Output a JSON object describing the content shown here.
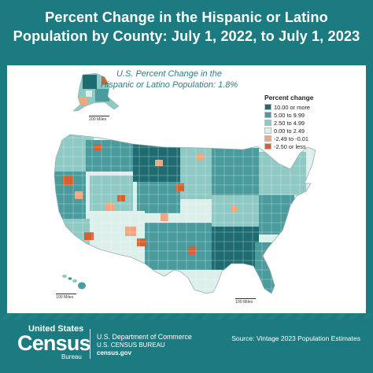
{
  "header": {
    "title_line1": "Percent Change in the Hispanic or Latino",
    "title_line2": "Population by County: July 1, 2022, to July 1, 2023"
  },
  "subtitle": {
    "line1": "U.S. Percent Change in the",
    "line2": "Hispanic or Latino Population: 1.8%"
  },
  "legend": {
    "title": "Percent change",
    "items": [
      {
        "label": "10.00 or more",
        "color": "#1e6b72"
      },
      {
        "label": "5.00 to 9.99",
        "color": "#4a9b9d"
      },
      {
        "label": "2.50 to 4.99",
        "color": "#8ec9c3"
      },
      {
        "label": "0.00 to 2.49",
        "color": "#dcefeb"
      },
      {
        "label": "-2.49 to -0.01",
        "color": "#f0a77d"
      },
      {
        "label": "-2.50 or less",
        "color": "#d8602f"
      }
    ]
  },
  "scales": {
    "alaska": "200 Miles",
    "hawaii": "100 Miles",
    "conus": "100 Miles"
  },
  "footer": {
    "logo_top": "United States",
    "logo_main": "Census",
    "logo_bottom": "Bureau",
    "dept": "U.S. Department of Commerce",
    "bureau": "U.S. CENSUS BUREAU",
    "url": "census.gov",
    "source": "Source: Vintage 2023 Population Estimates"
  }
}
